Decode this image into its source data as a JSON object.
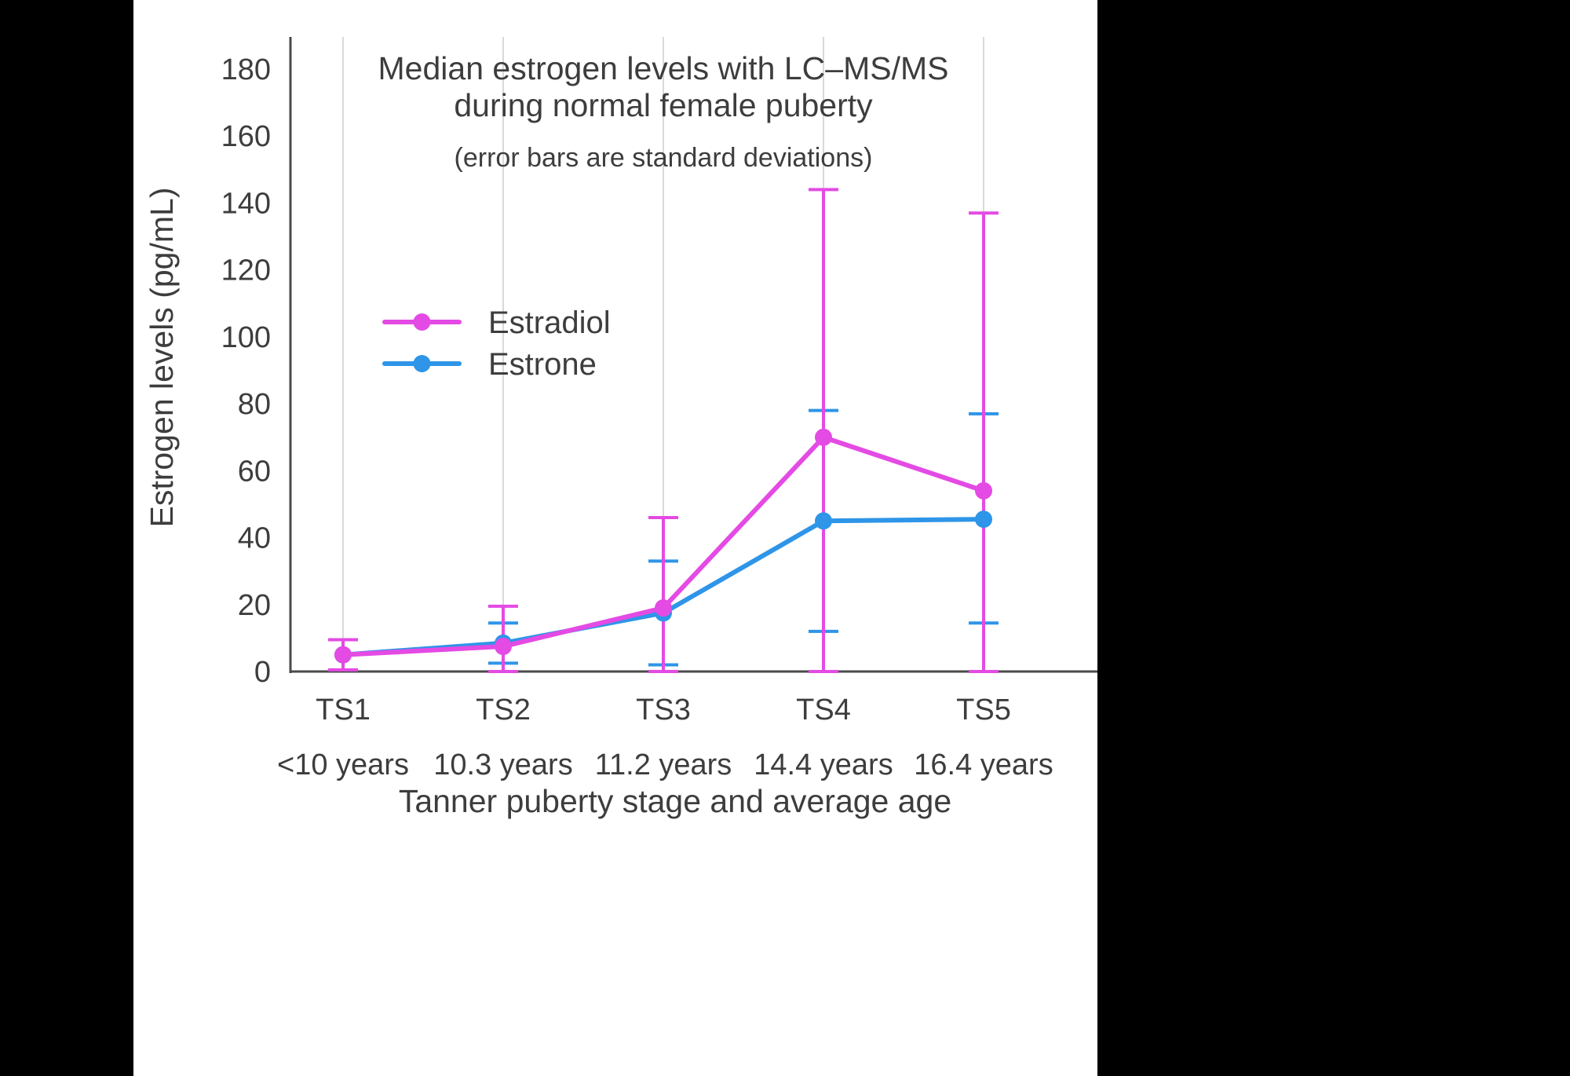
{
  "page": {
    "background_color": "#000000",
    "panel_color": "#ffffff"
  },
  "chart_data": {
    "type": "line",
    "title_lines": [
      "Median estrogen levels with LC–MS/MS",
      "during normal female puberty"
    ],
    "subtitle": "(error bars are standard deviations)",
    "ylabel": "Estrogen levels (pg/mL)",
    "xlabel": "Tanner puberty stage and average age",
    "ylim": [
      0,
      190
    ],
    "yticks": [
      0,
      20,
      40,
      60,
      80,
      100,
      120,
      140,
      160,
      180
    ],
    "categories": [
      "TS1",
      "TS2",
      "TS3",
      "TS4",
      "TS5"
    ],
    "category_ages": [
      "<10 years",
      "10.3 years",
      "11.2 years",
      "14.4 years",
      "16.4 years"
    ],
    "grid": "vertical-only",
    "legend": {
      "position": "inside-upper-left",
      "entries": [
        "Estradiol",
        "Estrone"
      ]
    },
    "colors": {
      "text": "#3d3d3d",
      "axis": "#4a4a4a",
      "grid": "#d9d9d9"
    },
    "series": [
      {
        "name": "Estrone",
        "color": "#2e95e8",
        "values": [
          5,
          8.5,
          17.5,
          45,
          45.5
        ],
        "error_bounds": [
          null,
          [
            2.5,
            14.5
          ],
          [
            2,
            33
          ],
          [
            12,
            78
          ],
          [
            14.5,
            77
          ]
        ]
      },
      {
        "name": "Estradiol",
        "color": "#e44ae4",
        "values": [
          5,
          7.5,
          19,
          70,
          54
        ],
        "error_bounds": [
          [
            0.5,
            9.5
          ],
          [
            0,
            19.5
          ],
          [
            0,
            46
          ],
          [
            0,
            144
          ],
          [
            0,
            137
          ]
        ]
      }
    ]
  }
}
